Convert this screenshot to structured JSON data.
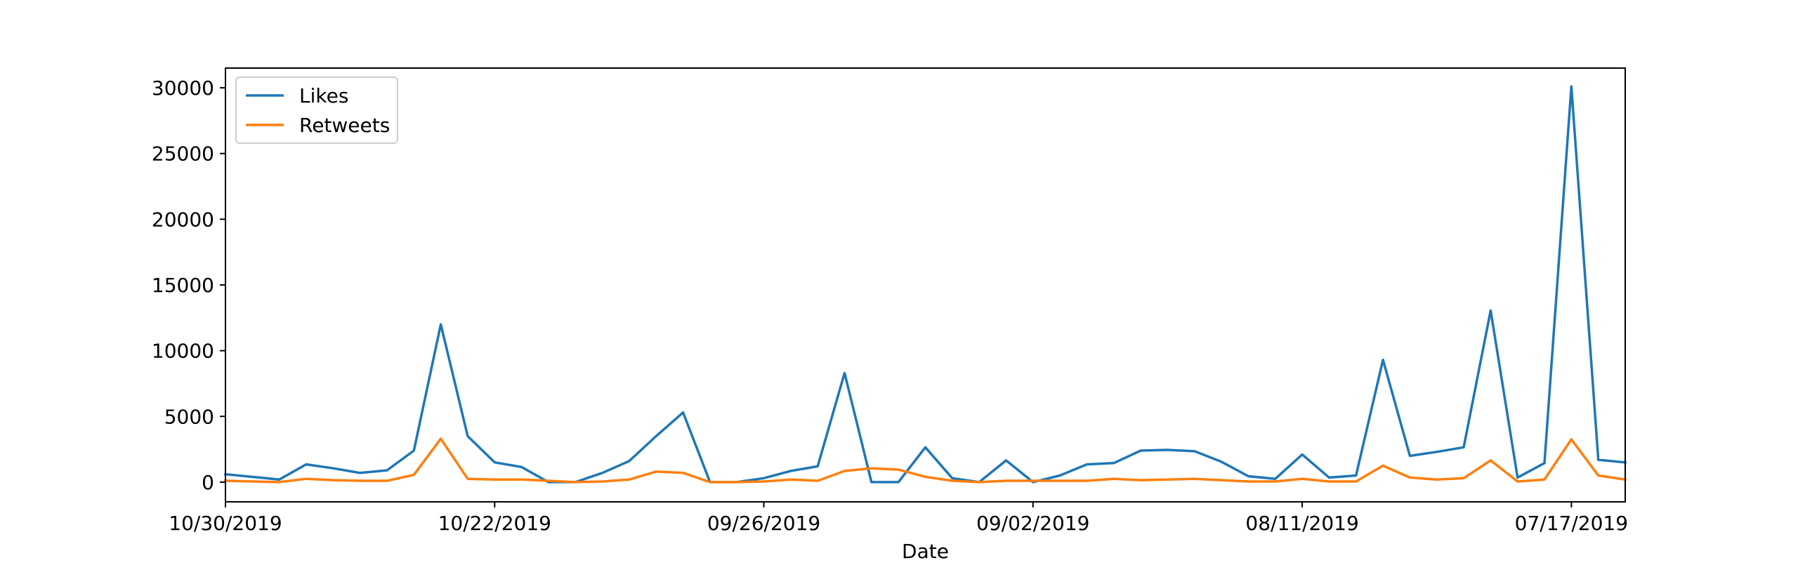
{
  "chart_data": {
    "type": "line",
    "title": "",
    "xlabel": "Date",
    "ylabel": "",
    "x_tick_labels": [
      "10/30/2019",
      "10/22/2019",
      "09/26/2019",
      "09/02/2019",
      "08/11/2019",
      "07/17/2019"
    ],
    "y_ticks": [
      0,
      5000,
      10000,
      15000,
      20000,
      25000,
      30000
    ],
    "ylim": [
      -1500,
      31500
    ],
    "xlim": [
      0,
      52
    ],
    "grid": false,
    "legend_position": "upper-left",
    "series": [
      {
        "name": "Likes",
        "color": "#1f77b4",
        "x": [
          0,
          2,
          3,
          4,
          5,
          6,
          7,
          8,
          9,
          10,
          11,
          12,
          13,
          14,
          15,
          16,
          17,
          18,
          19,
          20,
          21,
          22,
          23,
          24,
          25,
          26,
          27,
          28,
          29,
          30,
          31,
          32,
          33,
          34,
          35,
          36,
          37,
          38,
          39,
          40,
          41,
          42,
          43,
          44,
          45,
          46,
          47,
          48,
          49,
          50,
          51,
          52
        ],
        "values": [
          600,
          200,
          1350,
          1050,
          700,
          900,
          2400,
          12000,
          3500,
          1500,
          1150,
          0,
          0,
          700,
          1600,
          3500,
          5300,
          0,
          0,
          300,
          850,
          1200,
          8300,
          0,
          0,
          2650,
          300,
          0,
          1650,
          0,
          500,
          1350,
          1450,
          2400,
          2450,
          2350,
          1550,
          450,
          250,
          2100,
          350,
          500,
          9300,
          2000,
          2300,
          2650,
          13050,
          350,
          1450,
          30100,
          1700,
          1500
        ]
      },
      {
        "name": "Retweets",
        "color": "#ff7f0e",
        "x": [
          0,
          2,
          3,
          4,
          5,
          6,
          7,
          8,
          9,
          10,
          11,
          12,
          13,
          14,
          15,
          16,
          17,
          18,
          19,
          20,
          21,
          22,
          23,
          24,
          25,
          26,
          27,
          28,
          29,
          30,
          31,
          32,
          33,
          34,
          35,
          36,
          37,
          38,
          39,
          40,
          41,
          42,
          43,
          44,
          45,
          46,
          47,
          48,
          49,
          50,
          51,
          52
        ],
        "values": [
          100,
          0,
          250,
          150,
          100,
          100,
          550,
          3300,
          250,
          200,
          200,
          100,
          0,
          50,
          200,
          800,
          700,
          0,
          0,
          50,
          200,
          100,
          850,
          1050,
          950,
          400,
          100,
          0,
          100,
          100,
          100,
          100,
          250,
          150,
          200,
          250,
          150,
          50,
          50,
          250,
          50,
          50,
          1250,
          350,
          200,
          300,
          1650,
          50,
          200,
          3250,
          500,
          200
        ]
      }
    ]
  }
}
